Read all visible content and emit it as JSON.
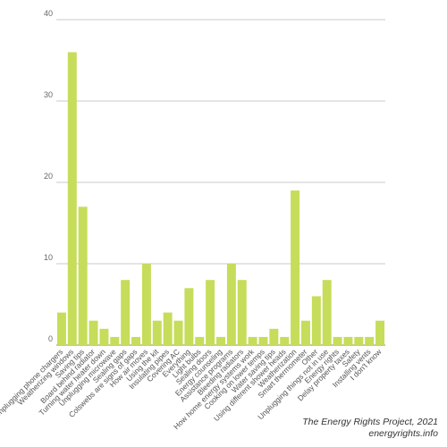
{
  "chart_data": {
    "type": "bar",
    "categories": [
      "Unplugging phone chargers",
      "Weatherizing windows",
      "Saving tips",
      "Board behind radiator",
      "Turning water heater down",
      "Unplugging microwave",
      "Sealing gaps",
      "Colswebs are signs of gaps",
      "How air moves",
      "Using the kit",
      "Insulating pipes",
      "Covering AC",
      "Everything",
      "Light bulbs",
      "Sealing doors",
      "Energy counseling",
      "Assistance programs",
      "Bleeding radiators",
      "How home energy systems work",
      "Cooking on lower temps",
      "Water saving tips",
      "Using different shower heads",
      "Weatherization",
      "Smart thermometer",
      "Other",
      "Unplugging things not in use",
      "Energy rights",
      "Delay property taxes",
      "Safety",
      "Installing vents",
      "I don't know"
    ],
    "values": [
      4,
      36,
      17,
      3,
      2,
      1,
      8,
      1,
      10,
      3,
      4,
      3,
      7,
      1,
      8,
      1,
      10,
      8,
      1,
      1,
      2,
      1,
      19,
      3,
      6,
      8,
      1,
      1,
      1,
      1,
      3
    ],
    "ylim": [
      0,
      40
    ],
    "yticks": [
      0,
      10,
      20,
      30,
      40
    ],
    "grid": true,
    "bar_color": "#c5dd5a",
    "grid_color": "#c8c8c8"
  },
  "credits": {
    "source": "The Energy Rights Project, 2021",
    "url": "energyrights.info"
  }
}
